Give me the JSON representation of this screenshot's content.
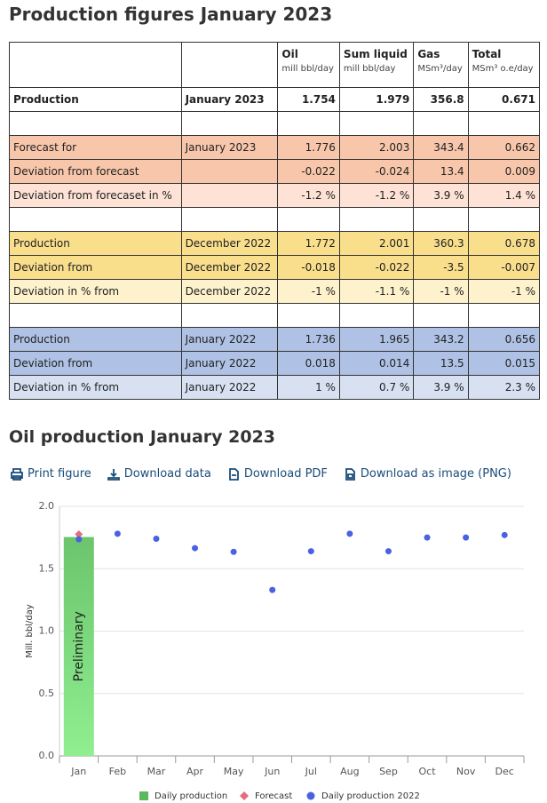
{
  "title": "Production figures January 2023",
  "table": {
    "header": [
      {
        "name": "Oil",
        "unit": "mill bbl/day"
      },
      {
        "name": "Sum liquid",
        "unit": "mill bbl/day"
      },
      {
        "name": "Gas",
        "unit": "MSm³/day"
      },
      {
        "name": "Total",
        "unit": "MSm³ o.e/day"
      }
    ],
    "rows": [
      {
        "cells": [
          "Production",
          "January 2023",
          "1.754",
          "1.979",
          "356.8",
          "0.671"
        ],
        "color": "#ffffff",
        "bold": true
      },
      {
        "cells": [
          "Forecast for",
          "January 2023",
          "1.776",
          "2.003",
          "343.4",
          "0.662"
        ],
        "color": "#f8c7ab",
        "gap_before": true
      },
      {
        "cells": [
          "Deviation from forecast",
          null,
          "-0.022",
          "-0.024",
          "13.4",
          "0.009"
        ],
        "color": "#f8c7ab"
      },
      {
        "cells": [
          "Deviation from forecaset in %",
          null,
          "-1.2 %",
          "-1.2 %",
          "3.9 %",
          "1.4 %"
        ],
        "color": "#fde2d5"
      },
      {
        "cells": [
          "Production",
          "December 2022",
          "1.772",
          "2.001",
          "360.3",
          "0.678"
        ],
        "color": "#f9de8c",
        "gap_before": true
      },
      {
        "cells": [
          "Deviation from",
          "December 2022",
          "-0.018",
          "-0.022",
          "-3.5",
          "-0.007"
        ],
        "color": "#f9de8c"
      },
      {
        "cells": [
          "Deviation in % from",
          "December 2022",
          "-1 %",
          "-1.1 %",
          "-1 %",
          "-1 %"
        ],
        "color": "#fdf2cc"
      },
      {
        "cells": [
          "Production",
          "January 2022",
          "1.736",
          "1.965",
          "343.2",
          "0.656"
        ],
        "color": "#afc1e4",
        "gap_before": true
      },
      {
        "cells": [
          "Deviation from",
          "January 2022",
          "0.018",
          "0.014",
          "13.5",
          "0.015"
        ],
        "color": "#afc1e4"
      },
      {
        "cells": [
          "Deviation in % from",
          "January 2022",
          "1 %",
          "0.7 %",
          "3.9 %",
          "2.3 %"
        ],
        "color": "#d7e1f2"
      }
    ]
  },
  "chart_title": "Oil production January 2023",
  "toolbar": [
    "Print figure",
    "Download data",
    "Download PDF",
    "Download as image (PNG)"
  ],
  "chart_data": {
    "type": "bar",
    "ylabel": "Mill. bbl/day",
    "annotation": "Preliminary",
    "categories": [
      "Jan",
      "Feb",
      "Mar",
      "Apr",
      "May",
      "Jun",
      "Jul",
      "Aug",
      "Sep",
      "Oct",
      "Nov",
      "Dec"
    ],
    "ylim": [
      0,
      2
    ],
    "yticks": [
      {
        "value": 0,
        "label": "0.0"
      },
      {
        "value": 0.5,
        "label": "0.5"
      },
      {
        "value": 1,
        "label": "1.0"
      },
      {
        "value": 1.5,
        "label": "1.5"
      },
      {
        "value": 2,
        "label": "2.0"
      }
    ],
    "grid": true,
    "series": [
      {
        "name": "Daily production",
        "type": "bar",
        "color": "#5cb85c",
        "values": [
          1.754,
          null,
          null,
          null,
          null,
          null,
          null,
          null,
          null,
          null,
          null,
          null
        ]
      },
      {
        "name": "Forecast",
        "type": "diamond",
        "color": "#e0707f",
        "values": [
          1.776,
          null,
          null,
          null,
          null,
          null,
          null,
          null,
          null,
          null,
          null,
          null
        ]
      },
      {
        "name": "Daily production 2022",
        "type": "dot",
        "color": "#4a62e0",
        "values": [
          1.736,
          1.78,
          1.74,
          1.665,
          1.635,
          1.33,
          1.64,
          1.78,
          1.64,
          1.75,
          1.75,
          1.77
        ]
      }
    ]
  }
}
